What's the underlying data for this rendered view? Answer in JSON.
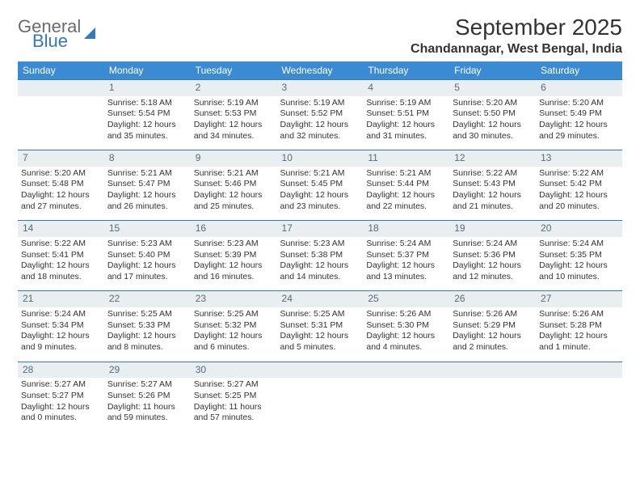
{
  "logo": {
    "word1": "General",
    "word2": "Blue"
  },
  "title": "September 2025",
  "location": "Chandannagar, West Bengal, India",
  "colors": {
    "header_bg": "#3b8bd4",
    "daynum_bg": "#e9eef1",
    "daynum_border": "#2f78c2",
    "logo_blue": "#2f78c2",
    "logo_gray": "#6b6b6b",
    "text": "#333333",
    "page_bg": "#ffffff"
  },
  "weekdays": [
    "Sunday",
    "Monday",
    "Tuesday",
    "Wednesday",
    "Thursday",
    "Friday",
    "Saturday"
  ],
  "weeks": [
    {
      "nums": [
        "",
        "1",
        "2",
        "3",
        "4",
        "5",
        "6"
      ],
      "cells": [
        null,
        {
          "sr": "Sunrise: 5:18 AM",
          "ss": "Sunset: 5:54 PM",
          "d1": "Daylight: 12 hours",
          "d2": "and 35 minutes."
        },
        {
          "sr": "Sunrise: 5:19 AM",
          "ss": "Sunset: 5:53 PM",
          "d1": "Daylight: 12 hours",
          "d2": "and 34 minutes."
        },
        {
          "sr": "Sunrise: 5:19 AM",
          "ss": "Sunset: 5:52 PM",
          "d1": "Daylight: 12 hours",
          "d2": "and 32 minutes."
        },
        {
          "sr": "Sunrise: 5:19 AM",
          "ss": "Sunset: 5:51 PM",
          "d1": "Daylight: 12 hours",
          "d2": "and 31 minutes."
        },
        {
          "sr": "Sunrise: 5:20 AM",
          "ss": "Sunset: 5:50 PM",
          "d1": "Daylight: 12 hours",
          "d2": "and 30 minutes."
        },
        {
          "sr": "Sunrise: 5:20 AM",
          "ss": "Sunset: 5:49 PM",
          "d1": "Daylight: 12 hours",
          "d2": "and 29 minutes."
        }
      ]
    },
    {
      "nums": [
        "7",
        "8",
        "9",
        "10",
        "11",
        "12",
        "13"
      ],
      "cells": [
        {
          "sr": "Sunrise: 5:20 AM",
          "ss": "Sunset: 5:48 PM",
          "d1": "Daylight: 12 hours",
          "d2": "and 27 minutes."
        },
        {
          "sr": "Sunrise: 5:21 AM",
          "ss": "Sunset: 5:47 PM",
          "d1": "Daylight: 12 hours",
          "d2": "and 26 minutes."
        },
        {
          "sr": "Sunrise: 5:21 AM",
          "ss": "Sunset: 5:46 PM",
          "d1": "Daylight: 12 hours",
          "d2": "and 25 minutes."
        },
        {
          "sr": "Sunrise: 5:21 AM",
          "ss": "Sunset: 5:45 PM",
          "d1": "Daylight: 12 hours",
          "d2": "and 23 minutes."
        },
        {
          "sr": "Sunrise: 5:21 AM",
          "ss": "Sunset: 5:44 PM",
          "d1": "Daylight: 12 hours",
          "d2": "and 22 minutes."
        },
        {
          "sr": "Sunrise: 5:22 AM",
          "ss": "Sunset: 5:43 PM",
          "d1": "Daylight: 12 hours",
          "d2": "and 21 minutes."
        },
        {
          "sr": "Sunrise: 5:22 AM",
          "ss": "Sunset: 5:42 PM",
          "d1": "Daylight: 12 hours",
          "d2": "and 20 minutes."
        }
      ]
    },
    {
      "nums": [
        "14",
        "15",
        "16",
        "17",
        "18",
        "19",
        "20"
      ],
      "cells": [
        {
          "sr": "Sunrise: 5:22 AM",
          "ss": "Sunset: 5:41 PM",
          "d1": "Daylight: 12 hours",
          "d2": "and 18 minutes."
        },
        {
          "sr": "Sunrise: 5:23 AM",
          "ss": "Sunset: 5:40 PM",
          "d1": "Daylight: 12 hours",
          "d2": "and 17 minutes."
        },
        {
          "sr": "Sunrise: 5:23 AM",
          "ss": "Sunset: 5:39 PM",
          "d1": "Daylight: 12 hours",
          "d2": "and 16 minutes."
        },
        {
          "sr": "Sunrise: 5:23 AM",
          "ss": "Sunset: 5:38 PM",
          "d1": "Daylight: 12 hours",
          "d2": "and 14 minutes."
        },
        {
          "sr": "Sunrise: 5:24 AM",
          "ss": "Sunset: 5:37 PM",
          "d1": "Daylight: 12 hours",
          "d2": "and 13 minutes."
        },
        {
          "sr": "Sunrise: 5:24 AM",
          "ss": "Sunset: 5:36 PM",
          "d1": "Daylight: 12 hours",
          "d2": "and 12 minutes."
        },
        {
          "sr": "Sunrise: 5:24 AM",
          "ss": "Sunset: 5:35 PM",
          "d1": "Daylight: 12 hours",
          "d2": "and 10 minutes."
        }
      ]
    },
    {
      "nums": [
        "21",
        "22",
        "23",
        "24",
        "25",
        "26",
        "27"
      ],
      "cells": [
        {
          "sr": "Sunrise: 5:24 AM",
          "ss": "Sunset: 5:34 PM",
          "d1": "Daylight: 12 hours",
          "d2": "and 9 minutes."
        },
        {
          "sr": "Sunrise: 5:25 AM",
          "ss": "Sunset: 5:33 PM",
          "d1": "Daylight: 12 hours",
          "d2": "and 8 minutes."
        },
        {
          "sr": "Sunrise: 5:25 AM",
          "ss": "Sunset: 5:32 PM",
          "d1": "Daylight: 12 hours",
          "d2": "and 6 minutes."
        },
        {
          "sr": "Sunrise: 5:25 AM",
          "ss": "Sunset: 5:31 PM",
          "d1": "Daylight: 12 hours",
          "d2": "and 5 minutes."
        },
        {
          "sr": "Sunrise: 5:26 AM",
          "ss": "Sunset: 5:30 PM",
          "d1": "Daylight: 12 hours",
          "d2": "and 4 minutes."
        },
        {
          "sr": "Sunrise: 5:26 AM",
          "ss": "Sunset: 5:29 PM",
          "d1": "Daylight: 12 hours",
          "d2": "and 2 minutes."
        },
        {
          "sr": "Sunrise: 5:26 AM",
          "ss": "Sunset: 5:28 PM",
          "d1": "Daylight: 12 hours",
          "d2": "and 1 minute."
        }
      ]
    },
    {
      "nums": [
        "28",
        "29",
        "30",
        "",
        "",
        "",
        ""
      ],
      "cells": [
        {
          "sr": "Sunrise: 5:27 AM",
          "ss": "Sunset: 5:27 PM",
          "d1": "Daylight: 12 hours",
          "d2": "and 0 minutes."
        },
        {
          "sr": "Sunrise: 5:27 AM",
          "ss": "Sunset: 5:26 PM",
          "d1": "Daylight: 11 hours",
          "d2": "and 59 minutes."
        },
        {
          "sr": "Sunrise: 5:27 AM",
          "ss": "Sunset: 5:25 PM",
          "d1": "Daylight: 11 hours",
          "d2": "and 57 minutes."
        },
        null,
        null,
        null,
        null
      ]
    }
  ]
}
